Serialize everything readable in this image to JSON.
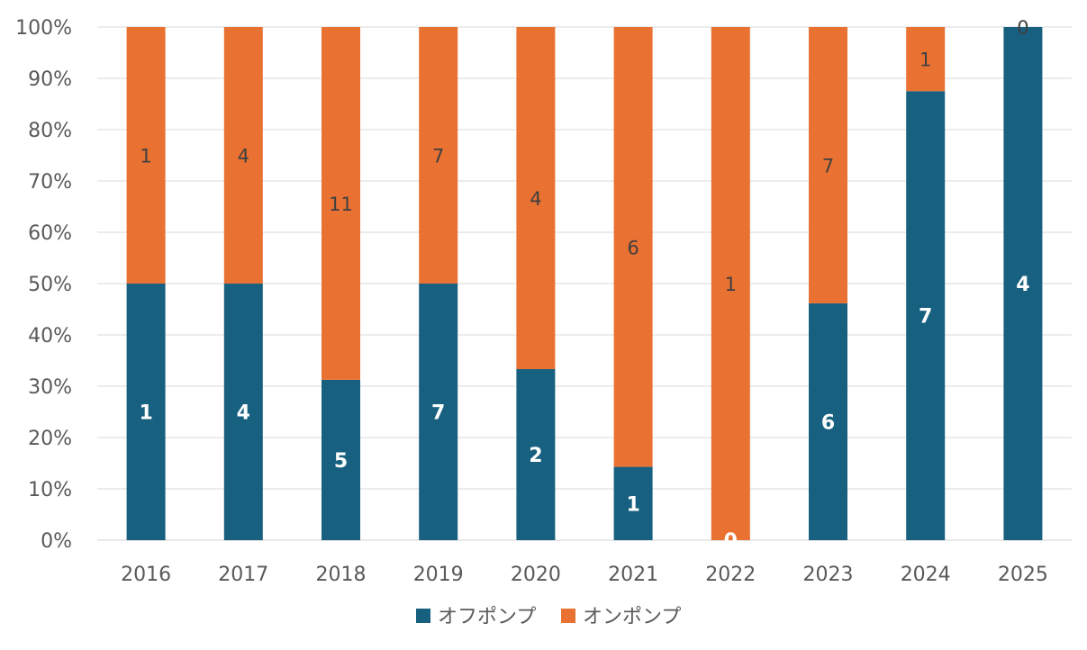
{
  "chart_data": {
    "type": "bar",
    "stacked": "percent",
    "title": "",
    "xlabel": "",
    "ylabel": "",
    "categories": [
      "2016",
      "2017",
      "2018",
      "2019",
      "2020",
      "2021",
      "2022",
      "2023",
      "2024",
      "2025"
    ],
    "series": [
      {
        "name": "オフポンプ",
        "color": "#17607F",
        "values": [
          1,
          4,
          5,
          7,
          2,
          1,
          0,
          6,
          7,
          4
        ]
      },
      {
        "name": "オンポンプ",
        "color": "#E97132",
        "values": [
          1,
          4,
          11,
          7,
          4,
          6,
          1,
          7,
          1,
          0
        ]
      }
    ],
    "ylim": [
      0,
      100
    ],
    "yticks": [
      "0%",
      "10%",
      "20%",
      "30%",
      "40%",
      "50%",
      "60%",
      "70%",
      "80%",
      "90%",
      "100%"
    ],
    "grid": true,
    "legend_position": "bottom"
  }
}
